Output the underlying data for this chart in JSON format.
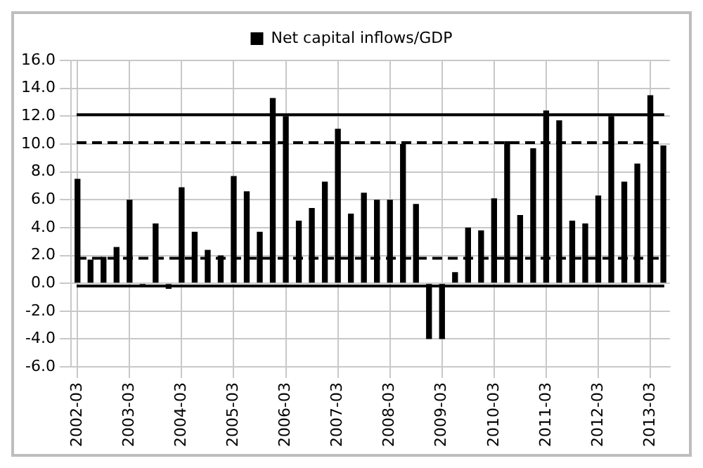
{
  "chart_data": {
    "type": "bar",
    "categories": [
      "2002-03",
      null,
      null,
      null,
      "2003-03",
      null,
      null,
      null,
      "2004-03",
      null,
      null,
      null,
      "2005-03",
      null,
      null,
      null,
      "2006-03",
      null,
      null,
      null,
      "2007-03",
      null,
      null,
      null,
      "2008-03",
      null,
      null,
      null,
      "2009-03",
      null,
      null,
      null,
      "2010-03",
      null,
      null,
      null,
      "2011-03",
      null,
      null,
      null,
      "2012-03",
      null,
      null,
      null,
      "2013-03",
      null
    ],
    "series": [
      {
        "name": "Net capital inflows/GDP",
        "color": "#000000",
        "values": [
          7.5,
          1.7,
          1.9,
          2.6,
          6.0,
          -0.1,
          4.3,
          -0.4,
          6.9,
          3.7,
          2.4,
          2.0,
          7.7,
          6.6,
          3.7,
          13.3,
          12.0,
          4.5,
          5.4,
          7.3,
          11.1,
          5.0,
          6.5,
          6.0,
          6.0,
          10.0,
          5.7,
          -4.0,
          -4.0,
          0.8,
          4.0,
          3.8,
          6.1,
          10.2,
          4.9,
          9.7,
          12.4,
          11.7,
          4.5,
          4.3,
          6.3,
          12.0,
          7.3,
          8.6,
          13.5,
          9.9
        ]
      }
    ],
    "ylim": [
      -6,
      16
    ],
    "yticks": [
      {
        "value": -6,
        "label": "-6.0"
      },
      {
        "value": -4,
        "label": "-4.0"
      },
      {
        "value": -2,
        "label": "-2.0"
      },
      {
        "value": 0,
        "label": "0.0"
      },
      {
        "value": 2,
        "label": "2.0"
      },
      {
        "value": 4,
        "label": "4.0"
      },
      {
        "value": 6,
        "label": "6.0"
      },
      {
        "value": 8,
        "label": "8.0"
      },
      {
        "value": 10,
        "label": "10.0"
      },
      {
        "value": 12,
        "label": "12.0"
      },
      {
        "value": 14,
        "label": "14.0"
      },
      {
        "value": 16,
        "label": "16.0"
      }
    ],
    "ref_lines": [
      {
        "axis": "y",
        "value": 12.1,
        "color": "#000000",
        "line_style": "solid"
      },
      {
        "axis": "y",
        "value": 10.1,
        "color": "#000000",
        "line_style": "dashed"
      },
      {
        "axis": "y",
        "value": 1.8,
        "color": "#000000",
        "line_style": "dashed"
      },
      {
        "axis": "y",
        "value": -0.2,
        "color": "#000000",
        "line_style": "solid"
      }
    ],
    "grid": true,
    "legend": "top"
  }
}
